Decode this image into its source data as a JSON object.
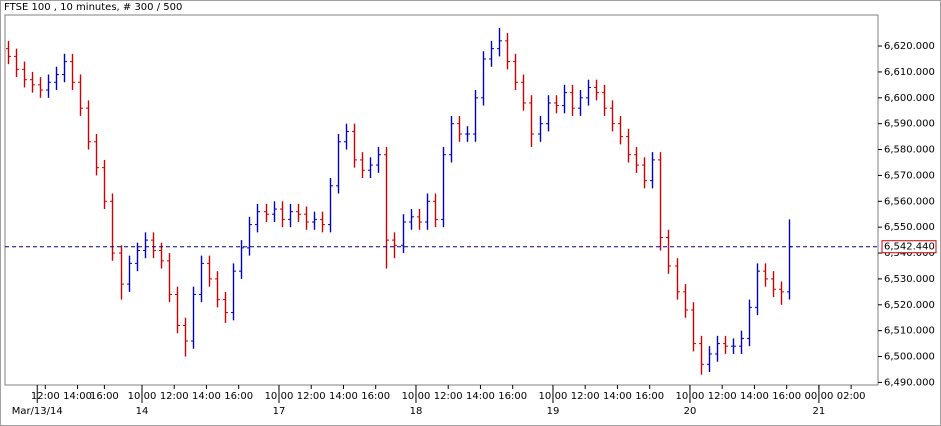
{
  "chart_data": {
    "type": "ohlc",
    "title": "FTSE 100 , 10 minutes, # 300 / 500",
    "up_color": "#0000c8",
    "down_color": "#d00000",
    "last_price_color": "#000080",
    "xlim": [
      0,
      325
    ],
    "ylim": [
      6489,
      6632
    ],
    "x": [
      1,
      4,
      7,
      10,
      13,
      16,
      19,
      22,
      25,
      28,
      31,
      34,
      37,
      40,
      43,
      46,
      49,
      52,
      55,
      58,
      61,
      64,
      67,
      70,
      73,
      76,
      79,
      82,
      85,
      88,
      91,
      94,
      97,
      100,
      103,
      106,
      109,
      112,
      115,
      118,
      121,
      124,
      127,
      130,
      133,
      136,
      139,
      142,
      145,
      148,
      151,
      154,
      157,
      160,
      163,
      166,
      169,
      172,
      175,
      178,
      181,
      184,
      187,
      190,
      193,
      196,
      199,
      202,
      205,
      208,
      211,
      214,
      217,
      220,
      223,
      226,
      229,
      232,
      235,
      238,
      241,
      244,
      247,
      250,
      253,
      256,
      259,
      262,
      265,
      268,
      271,
      274,
      277,
      280,
      283,
      286,
      289,
      292
    ],
    "open": [
      6619,
      6616,
      6611,
      6607,
      6605,
      6603,
      6606,
      6609,
      6614,
      6606,
      6596,
      6583,
      6573,
      6560,
      6540,
      6528,
      6536,
      6541,
      6545,
      6541,
      6537,
      6524,
      6512,
      6506,
      6524,
      6536,
      6530,
      6522,
      6517,
      6533,
      6542,
      6551,
      6556,
      6555,
      6557,
      6553,
      6556,
      6555,
      6552,
      6553,
      6551,
      6566,
      6583,
      6587,
      6576,
      6572,
      6574,
      6578,
      6545,
      6543,
      6552,
      6554,
      6552,
      6560,
      6553,
      6578,
      6590,
      6586,
      6586,
      6600,
      6615,
      6619,
      6622,
      6614,
      6606,
      6598,
      6586,
      6590,
      6598,
      6597,
      6602,
      6596,
      6600,
      6604,
      6602,
      6596,
      6590,
      6585,
      6578,
      6574,
      6568,
      6576,
      6546,
      6535,
      6525,
      6518,
      6505,
      6497,
      6501,
      6505,
      6504,
      6504,
      6507,
      6519,
      6533,
      6530,
      6526,
      6525
    ],
    "high": [
      6622,
      6619,
      6614,
      6610,
      6608,
      6609,
      6612,
      6617,
      6617,
      6609,
      6599,
      6586,
      6576,
      6563,
      6543,
      6539,
      6544,
      6548,
      6548,
      6544,
      6540,
      6527,
      6515,
      6527,
      6539,
      6539,
      6533,
      6525,
      6536,
      6545,
      6554,
      6559,
      6559,
      6560,
      6560,
      6559,
      6559,
      6558,
      6556,
      6556,
      6569,
      6586,
      6590,
      6590,
      6579,
      6577,
      6581,
      6581,
      6548,
      6555,
      6557,
      6557,
      6563,
      6563,
      6581,
      6593,
      6593,
      6589,
      6603,
      6618,
      6622,
      6627,
      6625,
      6617,
      6609,
      6601,
      6593,
      6601,
      6601,
      6605,
      6605,
      6603,
      6607,
      6607,
      6605,
      6599,
      6593,
      6588,
      6581,
      6577,
      6579,
      6579,
      6549,
      6538,
      6528,
      6521,
      6508,
      6504,
      6508,
      6508,
      6507,
      6510,
      6522,
      6536,
      6536,
      6533,
      6529,
      6553
    ],
    "low": [
      6613,
      6608,
      6604,
      6602,
      6600,
      6600,
      6603,
      6606,
      6603,
      6593,
      6580,
      6570,
      6557,
      6537,
      6522,
      6525,
      6533,
      6538,
      6538,
      6534,
      6521,
      6509,
      6500,
      6503,
      6521,
      6527,
      6519,
      6513,
      6514,
      6530,
      6539,
      6548,
      6552,
      6552,
      6550,
      6550,
      6552,
      6549,
      6549,
      6548,
      6548,
      6563,
      6580,
      6573,
      6569,
      6569,
      6571,
      6534,
      6538,
      6540,
      6549,
      6549,
      6549,
      6550,
      6550,
      6575,
      6583,
      6583,
      6583,
      6597,
      6612,
      6616,
      6611,
      6603,
      6595,
      6581,
      6583,
      6587,
      6594,
      6594,
      6593,
      6593,
      6597,
      6599,
      6593,
      6587,
      6582,
      6575,
      6571,
      6565,
      6565,
      6541,
      6532,
      6522,
      6515,
      6502,
      6493,
      6494,
      6498,
      6501,
      6501,
      6501,
      6504,
      6516,
      6527,
      6523,
      6520,
      6522
    ],
    "close": [
      6616,
      6611,
      6607,
      6605,
      6603,
      6606,
      6609,
      6614,
      6606,
      6596,
      6583,
      6573,
      6560,
      6540,
      6528,
      6536,
      6541,
      6545,
      6541,
      6537,
      6524,
      6512,
      6506,
      6524,
      6536,
      6530,
      6522,
      6517,
      6533,
      6542,
      6551,
      6556,
      6555,
      6557,
      6553,
      6556,
      6555,
      6552,
      6553,
      6551,
      6566,
      6583,
      6587,
      6576,
      6572,
      6574,
      6578,
      6545,
      6543,
      6552,
      6554,
      6552,
      6560,
      6553,
      6578,
      6590,
      6586,
      6586,
      6600,
      6615,
      6619,
      6622,
      6614,
      6606,
      6598,
      6586,
      6590,
      6598,
      6597,
      6602,
      6596,
      6600,
      6604,
      6602,
      6596,
      6590,
      6585,
      6578,
      6574,
      6568,
      6576,
      6546,
      6535,
      6525,
      6518,
      6505,
      6497,
      6501,
      6505,
      6504,
      6504,
      6507,
      6519,
      6533,
      6530,
      6526,
      6525,
      6542.44
    ],
    "yticks": [
      {
        "value": 6490,
        "label": "6,490.000"
      },
      {
        "value": 6500,
        "label": "6,500.000"
      },
      {
        "value": 6510,
        "label": "6,510.000"
      },
      {
        "value": 6520,
        "label": "6,520.000"
      },
      {
        "value": 6530,
        "label": "6,530.000"
      },
      {
        "value": 6540,
        "label": "6,540.000"
      },
      {
        "value": 6550,
        "label": "6,550.000"
      },
      {
        "value": 6560,
        "label": "6,560.000"
      },
      {
        "value": 6570,
        "label": "6,570.000"
      },
      {
        "value": 6580,
        "label": "6,580.000"
      },
      {
        "value": 6590,
        "label": "6,590.000"
      },
      {
        "value": 6600,
        "label": "6,600.000"
      },
      {
        "value": 6610,
        "label": "6,610.000"
      },
      {
        "value": 6620,
        "label": "6,620.000"
      }
    ],
    "xticks": [
      {
        "value": 15,
        "label": "12:00"
      },
      {
        "value": 27,
        "label": "14:00"
      },
      {
        "value": 37,
        "label": "16:00"
      },
      {
        "value": 51,
        "label": "10:00"
      },
      {
        "value": 63,
        "label": "12:00"
      },
      {
        "value": 75,
        "label": "14:00"
      },
      {
        "value": 87,
        "label": "16:00"
      },
      {
        "value": 102,
        "label": "10:00"
      },
      {
        "value": 114,
        "label": "12:00"
      },
      {
        "value": 126,
        "label": "14:00"
      },
      {
        "value": 138,
        "label": "16:00"
      },
      {
        "value": 153,
        "label": "10:00"
      },
      {
        "value": 165,
        "label": "12:00"
      },
      {
        "value": 177,
        "label": "14:00"
      },
      {
        "value": 189,
        "label": "16:00"
      },
      {
        "value": 204,
        "label": "10:00"
      },
      {
        "value": 216,
        "label": "12:00"
      },
      {
        "value": 228,
        "label": "14:00"
      },
      {
        "value": 240,
        "label": "16:00"
      },
      {
        "value": 255,
        "label": "10:00"
      },
      {
        "value": 267,
        "label": "12:00"
      },
      {
        "value": 279,
        "label": "14:00"
      },
      {
        "value": 291,
        "label": "16:00"
      },
      {
        "value": 303,
        "label": "00:00"
      },
      {
        "value": 315,
        "label": "02:00"
      }
    ],
    "date_ticks": [
      {
        "value": 12,
        "label": "Mar/13/14"
      },
      {
        "value": 51,
        "label": "14"
      },
      {
        "value": 102,
        "label": "17"
      },
      {
        "value": 153,
        "label": "18"
      },
      {
        "value": 204,
        "label": "19"
      },
      {
        "value": 255,
        "label": "20"
      },
      {
        "value": 303,
        "label": "21"
      }
    ],
    "last_price": {
      "value": 6542.44,
      "label": "6,542.440"
    }
  }
}
